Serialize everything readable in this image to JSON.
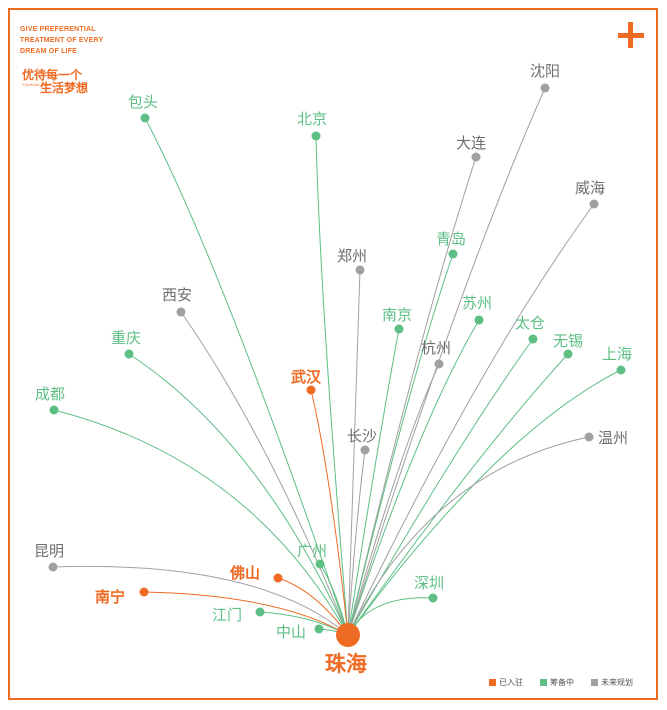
{
  "slogan": {
    "english": "GIVE PREFERENTIAL TREATMENT OF EVERY DREAM OF LIFE",
    "chinese_line1": "优待每一个",
    "chinese_line2": "生活梦想",
    "small_text": "YOUHUAN HOUSE"
  },
  "colors": {
    "entered": "#EF6B23",
    "preparing": "#5DBF84",
    "planned": "#A0A0A0"
  },
  "hub": {
    "name": "珠海"
  },
  "legend": {
    "entered": "已入驻",
    "preparing": "筹备中",
    "planned": "未来规划"
  },
  "cities": [
    {
      "name": "包头",
      "status": "preparing"
    },
    {
      "name": "北京",
      "status": "preparing"
    },
    {
      "name": "沈阳",
      "status": "planned"
    },
    {
      "name": "大连",
      "status": "planned"
    },
    {
      "name": "威海",
      "status": "planned"
    },
    {
      "name": "郑州",
      "status": "planned"
    },
    {
      "name": "青岛",
      "status": "preparing"
    },
    {
      "name": "西安",
      "status": "planned"
    },
    {
      "name": "苏州",
      "status": "preparing"
    },
    {
      "name": "南京",
      "status": "preparing"
    },
    {
      "name": "太仓",
      "status": "preparing"
    },
    {
      "name": "无锡",
      "status": "preparing"
    },
    {
      "name": "重庆",
      "status": "preparing"
    },
    {
      "name": "杭州",
      "status": "planned"
    },
    {
      "name": "上海",
      "status": "preparing"
    },
    {
      "name": "武汉",
      "status": "entered"
    },
    {
      "name": "成都",
      "status": "preparing"
    },
    {
      "name": "长沙",
      "status": "planned"
    },
    {
      "name": "温州",
      "status": "planned"
    },
    {
      "name": "广州",
      "status": "preparing"
    },
    {
      "name": "昆明",
      "status": "planned"
    },
    {
      "name": "佛山",
      "status": "entered"
    },
    {
      "name": "深圳",
      "status": "preparing"
    },
    {
      "name": "南宁",
      "status": "entered"
    },
    {
      "name": "江门",
      "status": "preparing"
    },
    {
      "name": "中山",
      "status": "preparing"
    }
  ]
}
